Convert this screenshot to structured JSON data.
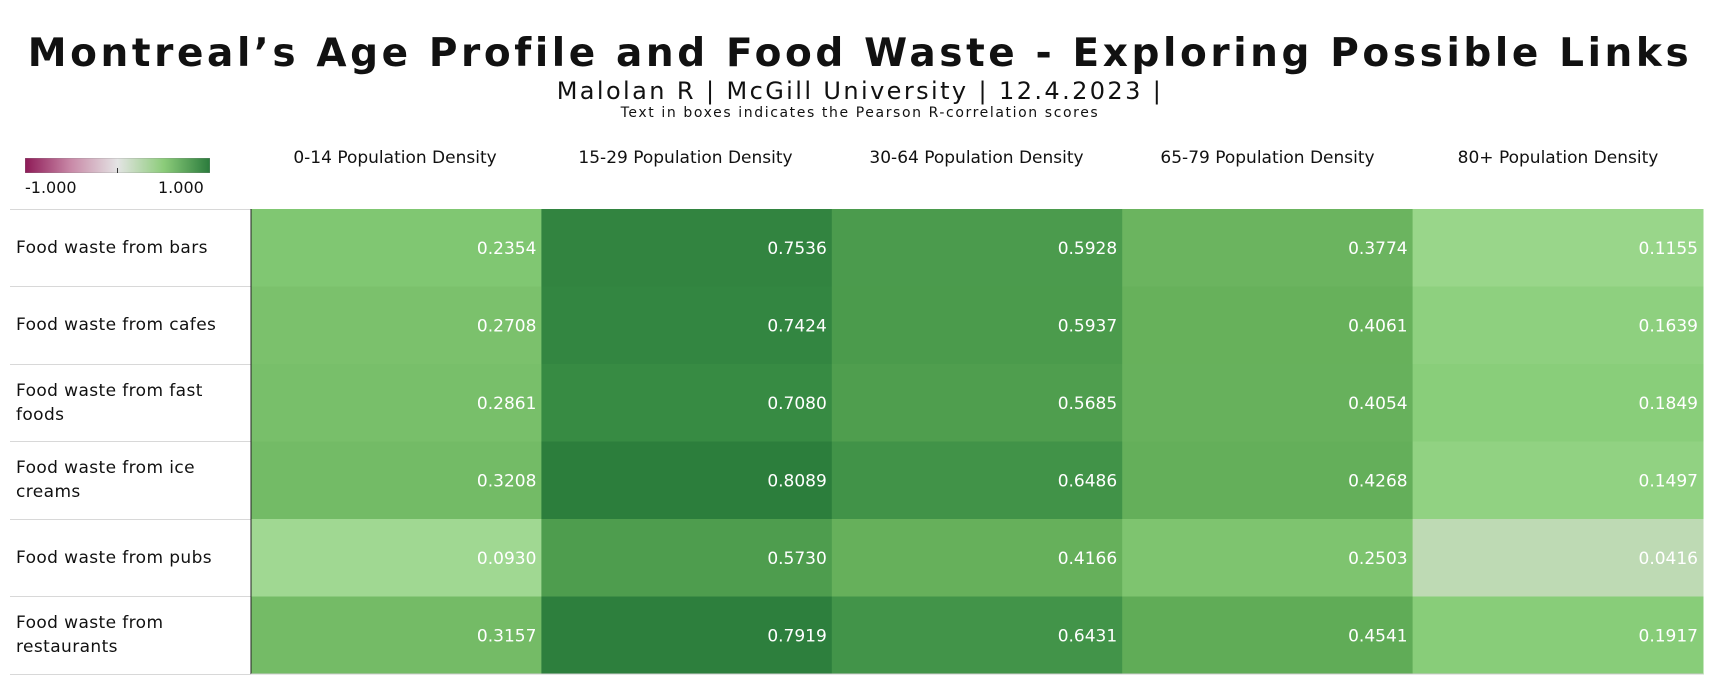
{
  "chart_data": {
    "type": "heatmap",
    "title": "Montreal’s Age Profile and Food Waste - Exploring Possible Links",
    "subtitle": "Malolan R | McGill University | 12.4.2023 |",
    "note": "Text in boxes indicates the Pearson R-correlation scores",
    "legend": {
      "min_label": "-1.000",
      "max_label": "1.000",
      "min": -1.0,
      "max": 1.0,
      "colors": [
        "#8e1a57",
        "#c98aa8",
        "#e4e4e4",
        "#8ccc7a",
        "#2a7b3c"
      ]
    },
    "columns": [
      "0-14 Population Density",
      "15-29 Population Density",
      "30-64 Population Density",
      "65-79 Population Density",
      "80+ Population Density"
    ],
    "rows": [
      "Food waste from bars",
      "Food waste from cafes",
      "Food waste from fast foods",
      "Food waste from ice creams",
      "Food waste from pubs",
      "Food waste from restaurants"
    ],
    "values": [
      [
        0.2354,
        0.7536,
        0.5928,
        0.3774,
        0.1155
      ],
      [
        0.2708,
        0.7424,
        0.5937,
        0.4061,
        0.1639
      ],
      [
        0.2861,
        0.708,
        0.5685,
        0.4054,
        0.1849
      ],
      [
        0.3208,
        0.8089,
        0.6486,
        0.4268,
        0.1497
      ],
      [
        0.093,
        0.573,
        0.4166,
        0.2503,
        0.0416
      ],
      [
        0.3157,
        0.7919,
        0.6431,
        0.4541,
        0.1917
      ]
    ],
    "value_labels": [
      [
        "0.2354",
        "0.7536",
        "0.5928",
        "0.3774",
        "0.1155"
      ],
      [
        "0.2708",
        "0.7424",
        "0.5937",
        "0.4061",
        "0.1639"
      ],
      [
        "0.2861",
        "0.7080",
        "0.5685",
        "0.4054",
        "0.1849"
      ],
      [
        "0.3208",
        "0.8089",
        "0.6486",
        "0.4268",
        "0.1497"
      ],
      [
        "0.0930",
        "0.5730",
        "0.4166",
        "0.2503",
        "0.0416"
      ],
      [
        "0.3157",
        "0.7919",
        "0.6431",
        "0.4541",
        "0.1917"
      ]
    ]
  }
}
